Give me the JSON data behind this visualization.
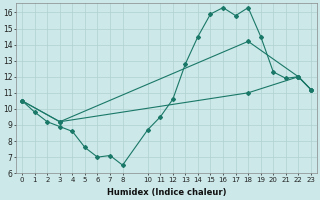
{
  "xlabel": "Humidex (Indice chaleur)",
  "bg_color": "#cce8e8",
  "grid_color": "#b0d0d0",
  "line_color": "#1a7868",
  "xlim": [
    -0.5,
    23.5
  ],
  "ylim": [
    6,
    16.6
  ],
  "xticks": [
    0,
    1,
    2,
    3,
    4,
    5,
    6,
    7,
    8,
    10,
    11,
    12,
    13,
    14,
    15,
    16,
    17,
    18,
    19,
    20,
    21,
    22,
    23
  ],
  "yticks": [
    6,
    7,
    8,
    9,
    10,
    11,
    12,
    13,
    14,
    15,
    16
  ],
  "curve1_x": [
    0,
    1,
    2,
    3,
    4,
    5,
    6,
    7,
    8,
    10,
    11,
    12,
    13,
    14,
    15,
    16,
    17,
    18,
    19,
    20,
    21,
    22,
    23
  ],
  "curve1_y": [
    10.5,
    9.8,
    9.2,
    8.9,
    8.6,
    7.6,
    7.0,
    7.1,
    6.5,
    8.7,
    9.5,
    10.6,
    12.8,
    14.5,
    15.9,
    16.3,
    15.8,
    16.3,
    14.5,
    12.3,
    11.9,
    12.0,
    11.2
  ],
  "curve2_x": [
    0,
    3,
    18,
    22,
    23
  ],
  "curve2_y": [
    10.5,
    9.2,
    14.2,
    12.0,
    11.2
  ],
  "curve3_x": [
    0,
    3,
    18,
    22,
    23
  ],
  "curve3_y": [
    10.5,
    9.2,
    11.0,
    12.0,
    11.2
  ]
}
